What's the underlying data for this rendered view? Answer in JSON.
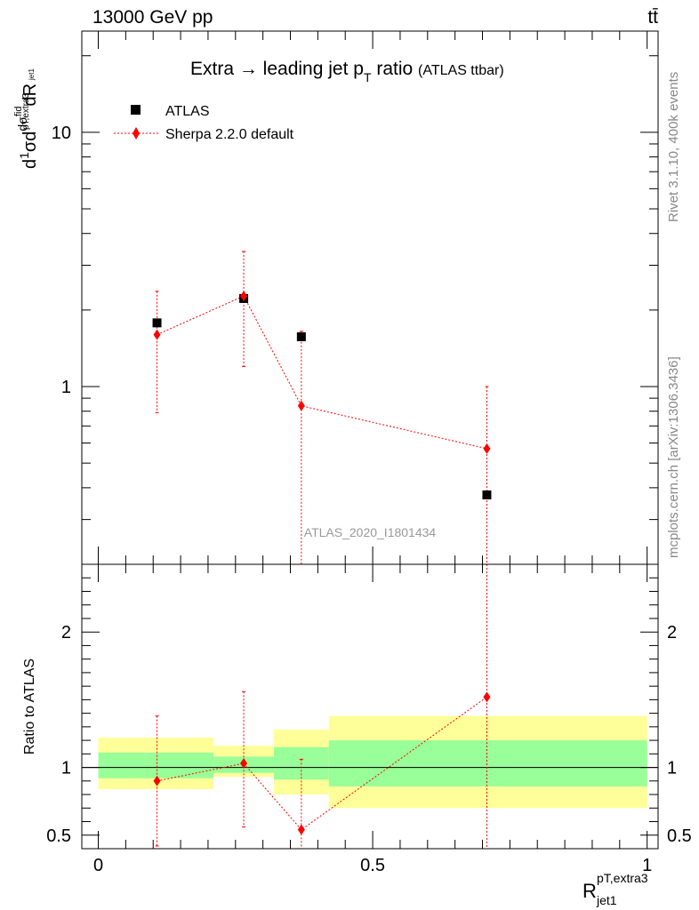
{
  "header": {
    "left": "13000 GeV pp",
    "right": "tt̄"
  },
  "side_text": {
    "rivet": "Rivet 3.1.10,  400k events",
    "mcplots": "mcplots.cern.ch [arXiv:1306.3436]"
  },
  "watermark": "ATLAS_2020_I1801434",
  "chart_data": [
    {
      "type": "scatter",
      "title": "Extra → leading jet p_T ratio",
      "subtitle": "(ATLAS ttbar)",
      "ylabel": "1/σ dσ^fid/dR^pT,extra3_jet1",
      "xlabel": "R^{pT,extra3}_{jet1}",
      "yscale": "log",
      "ylim": [
        0.2,
        25
      ],
      "xlim": [
        -0.03,
        1.02
      ],
      "ytick_labels": [
        "1",
        "10"
      ],
      "legend_position": "top-left",
      "series": [
        {
          "name": "ATLAS",
          "marker": "square",
          "color": "#000000",
          "x": [
            0.107,
            0.265,
            0.37,
            0.708
          ],
          "y": [
            1.78,
            2.22,
            1.57,
            0.375
          ]
        },
        {
          "name": "Sherpa 2.2.0 default",
          "marker": "diamond",
          "color": "#ff0000",
          "line": "dotted",
          "x": [
            0.107,
            0.265,
            0.37,
            0.708
          ],
          "y": [
            1.6,
            2.27,
            0.84,
            0.57
          ],
          "err_low": [
            0.79,
            1.2,
            0.05,
            0.05
          ],
          "err_high": [
            2.37,
            3.4,
            1.65,
            1.0
          ]
        }
      ]
    },
    {
      "type": "line",
      "ylabel": "Ratio to ATLAS",
      "xlabel": "R^{pT,extra3}_{jet1}",
      "ylim": [
        0.4,
        2.5
      ],
      "xlim": [
        -0.03,
        1.02
      ],
      "xtick_labels": [
        "0",
        "0.5",
        "1"
      ],
      "ytick_labels": [
        "0.5",
        "1",
        "2"
      ],
      "bands": [
        {
          "x0": 0.0,
          "x1": 0.21,
          "yellow": [
            0.84,
            1.22
          ],
          "green": [
            0.92,
            1.11
          ]
        },
        {
          "x0": 0.21,
          "x1": 0.32,
          "yellow": [
            0.93,
            1.16
          ],
          "green": [
            0.96,
            1.08
          ]
        },
        {
          "x0": 0.32,
          "x1": 0.42,
          "yellow": [
            0.8,
            1.28
          ],
          "green": [
            0.91,
            1.15
          ]
        },
        {
          "x0": 0.42,
          "x1": 1.0,
          "yellow": [
            0.7,
            1.38
          ],
          "green": [
            0.86,
            1.2
          ]
        }
      ],
      "series": [
        {
          "name": "Sherpa 2.2.0 default",
          "color": "#ff0000",
          "x": [
            0.107,
            0.265,
            0.37,
            0.708
          ],
          "y": [
            0.9,
            1.03,
            0.54,
            1.52
          ],
          "err_low": [
            0.42,
            0.56,
            0.05,
            0.05
          ],
          "err_high": [
            1.38,
            1.56,
            1.06,
            2.6
          ]
        }
      ]
    }
  ]
}
